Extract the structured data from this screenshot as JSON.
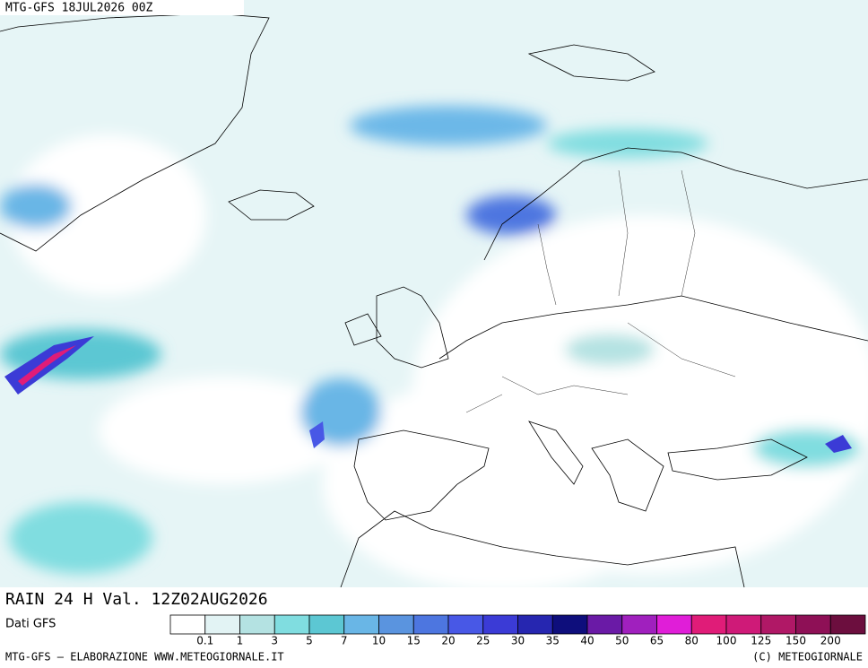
{
  "header": {
    "title": "MTG-GFS 18JUL2026 00Z"
  },
  "map": {
    "label": "RAIN 24 H Val. 12Z02AUG2026"
  },
  "legend": {
    "source": "Dati GFS",
    "thresholds": [
      0.1,
      1,
      3,
      5,
      7,
      10,
      15,
      20,
      25,
      30,
      35,
      40,
      50,
      65,
      80,
      100,
      125,
      150,
      200
    ],
    "colors": [
      "#ffffff",
      "#e2f3f4",
      "#b4e2e2",
      "#80dde0",
      "#5cc7d3",
      "#69b6e6",
      "#5a94df",
      "#4d76e0",
      "#4858e6",
      "#3b3bd6",
      "#2626b0",
      "#0e0e7c",
      "#6a1aa6",
      "#a020be",
      "#e01ed8",
      "#e01c78",
      "#cf1a78",
      "#b01866",
      "#8e1056",
      "#6c0e3e"
    ]
  },
  "footer": {
    "left": "MTG-GFS — ELABORAZIONE WWW.METEOGIORNALE.IT",
    "right": "(C) METEOGIORNALE"
  }
}
